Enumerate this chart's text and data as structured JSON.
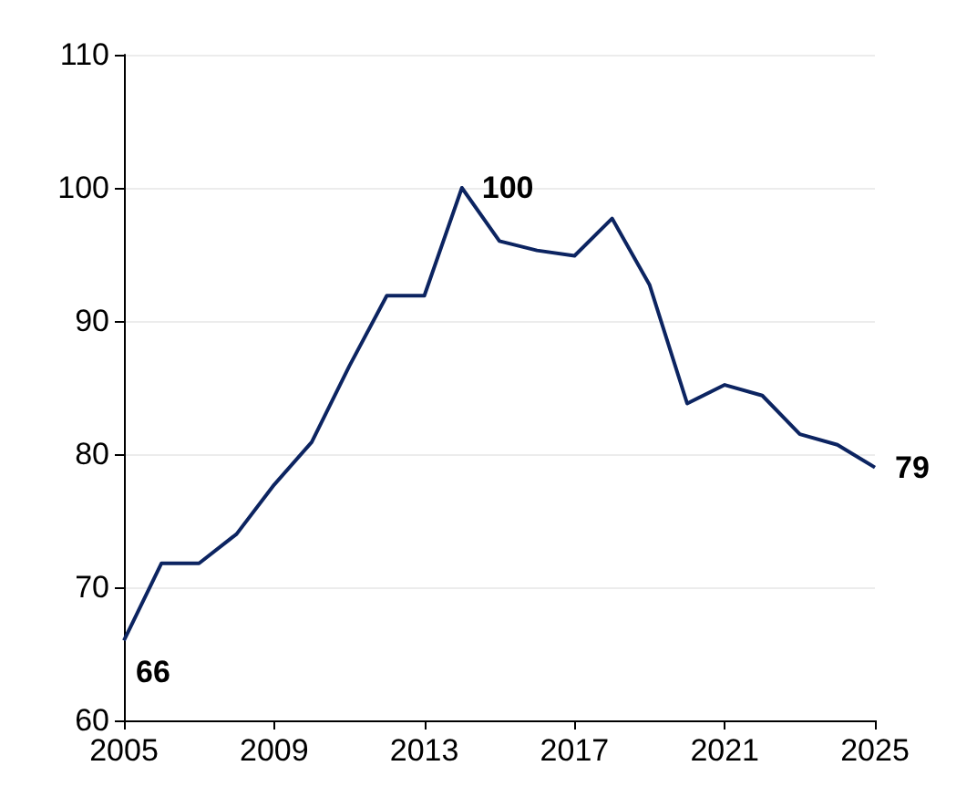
{
  "chart_data": {
    "type": "line",
    "x": [
      2005,
      2006,
      2007,
      2008,
      2009,
      2010,
      2011,
      2012,
      2013,
      2014,
      2015,
      2016,
      2017,
      2018,
      2019,
      2020,
      2021,
      2022,
      2023,
      2024,
      2025
    ],
    "series": [
      {
        "color": "#0c2461",
        "values": [
          66,
          71.8,
          71.8,
          74,
          77.7,
          80.9,
          86.6,
          91.9,
          91.9,
          100,
          96,
          95.3,
          94.9,
          97.7,
          92.7,
          83.8,
          85.2,
          84.4,
          81.5,
          80.7,
          79
        ],
        "value_labels": [
          "66",
          null,
          null,
          null,
          null,
          null,
          null,
          null,
          null,
          "100",
          null,
          null,
          null,
          null,
          null,
          null,
          null,
          null,
          null,
          null,
          "79"
        ]
      }
    ],
    "xlim": [
      2005,
      2025
    ],
    "xticks": [
      2005,
      2009,
      2013,
      2017,
      2021,
      2025
    ],
    "ylim": [
      60,
      110
    ],
    "yticks": [
      60,
      70,
      80,
      90,
      100,
      110
    ],
    "grid": "y",
    "marker": "none",
    "line_style": "solid"
  }
}
